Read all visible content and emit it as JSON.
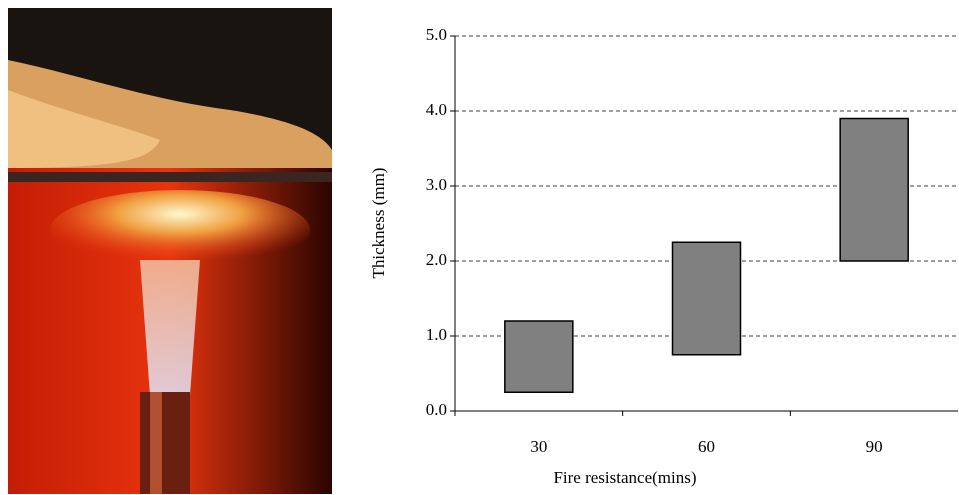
{
  "chart_data": {
    "type": "floating-bar",
    "categories": [
      "30",
      "60",
      "90"
    ],
    "low": [
      0.25,
      0.75,
      2.0
    ],
    "high": [
      1.2,
      2.25,
      3.9
    ],
    "color": "#808080",
    "ylim": [
      0,
      5
    ],
    "yticks": [
      {
        "value": 0,
        "label": "0.0"
      },
      {
        "value": 1,
        "label": "1.0"
      },
      {
        "value": 2,
        "label": "2.0"
      },
      {
        "value": 3,
        "label": "3.0"
      },
      {
        "value": 4,
        "label": "4.0"
      },
      {
        "value": 5,
        "label": "5.0"
      }
    ],
    "grid": true,
    "xlabel": "Fire resistance(mins)",
    "ylabel": "Thickness (mm)"
  }
}
